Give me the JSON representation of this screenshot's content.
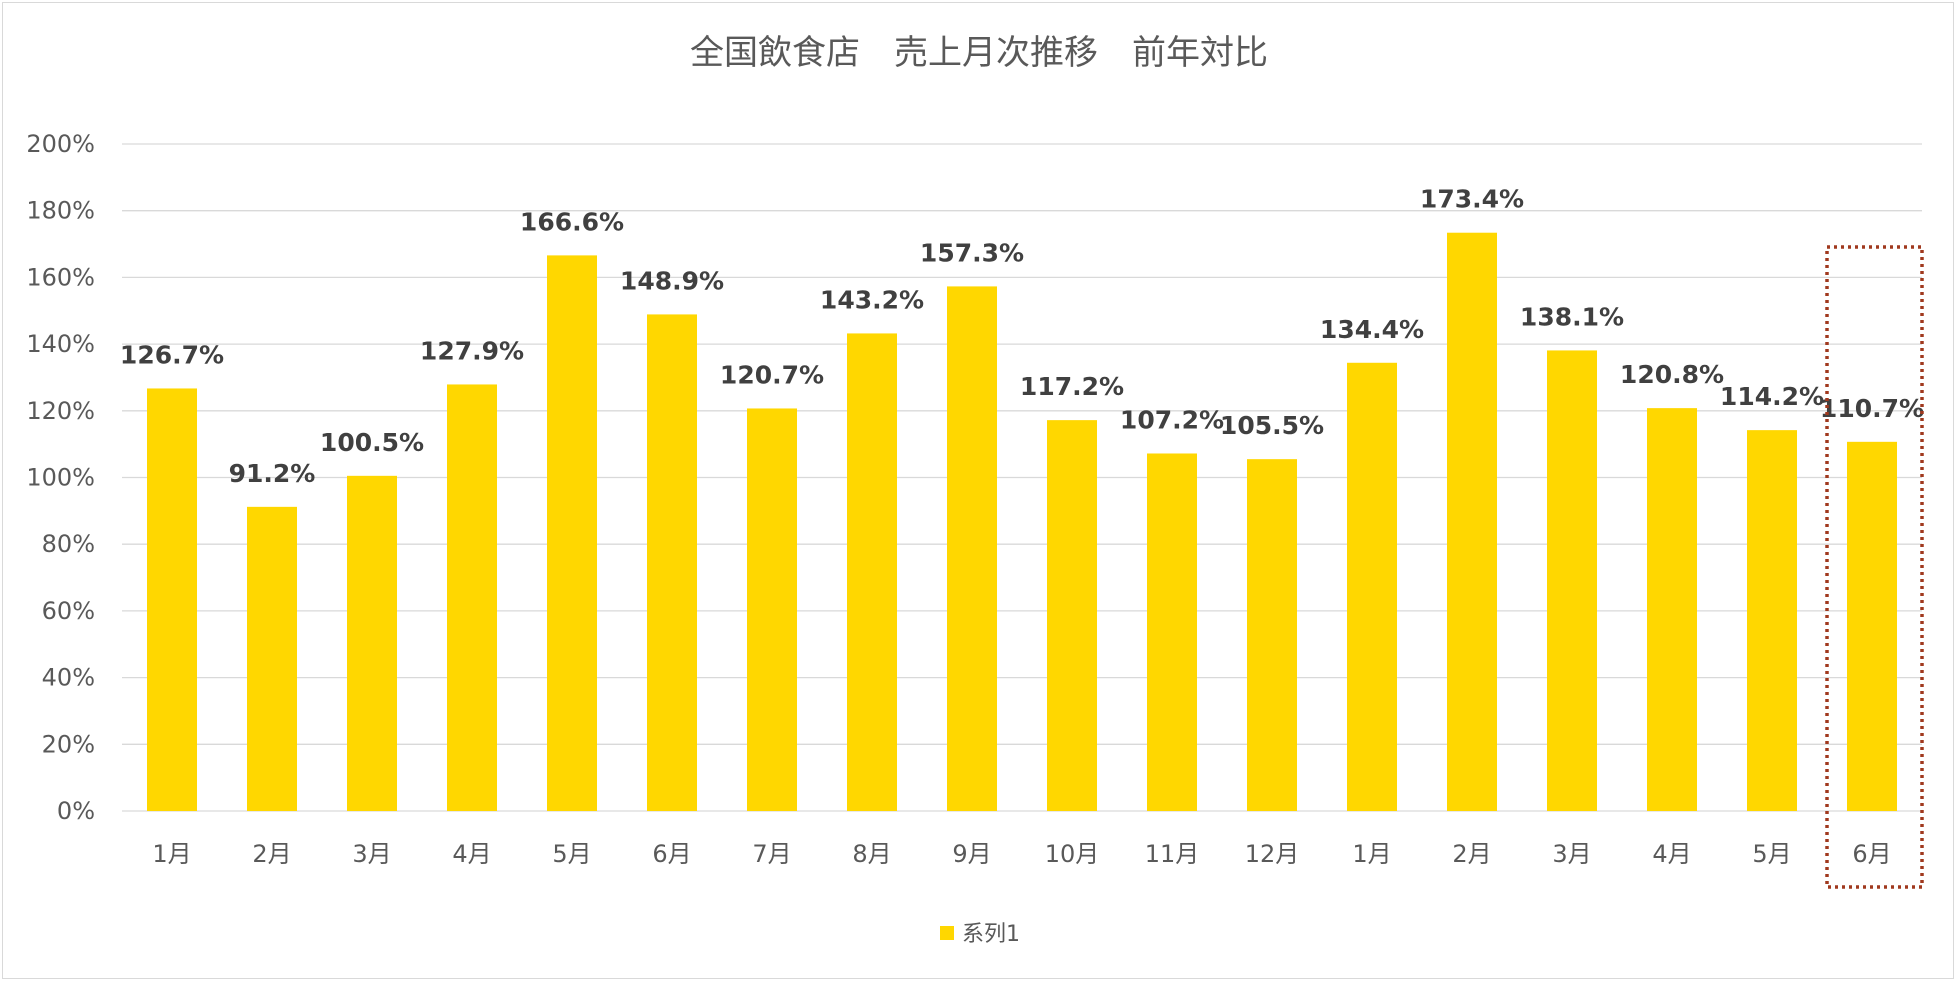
{
  "chart_data": {
    "type": "bar",
    "title": "全国飲食店　売上月次推移　前年対比",
    "categories": [
      "1月",
      "2月",
      "3月",
      "4月",
      "5月",
      "6月",
      "7月",
      "8月",
      "9月",
      "10月",
      "11月",
      "12月",
      "1月",
      "2月",
      "3月",
      "4月",
      "5月",
      "6月"
    ],
    "series": [
      {
        "name": "系列1",
        "values": [
          126.7,
          91.2,
          100.5,
          127.9,
          166.6,
          148.9,
          120.7,
          143.2,
          157.3,
          117.2,
          107.2,
          105.5,
          134.4,
          173.4,
          138.1,
          120.8,
          114.2,
          110.7
        ],
        "labels": [
          "126.7%",
          "91.2%",
          "100.5%",
          "127.9%",
          "166.6%",
          "148.9%",
          "120.7%",
          "143.2%",
          "157.3%",
          "117.2%",
          "107.2%",
          "105.5%",
          "134.4%",
          "173.4%",
          "138.1%",
          "120.8%",
          "114.2%",
          "110.7%"
        ],
        "color": "#FFD700"
      }
    ],
    "yticks": [
      "0%",
      "20%",
      "40%",
      "60%",
      "80%",
      "100%",
      "120%",
      "140%",
      "160%",
      "180%",
      "200%"
    ],
    "ylim": [
      0,
      200
    ],
    "grid": true,
    "legend": "bottom",
    "highlight_category_index": 17,
    "highlight_color": "#A0391E"
  }
}
